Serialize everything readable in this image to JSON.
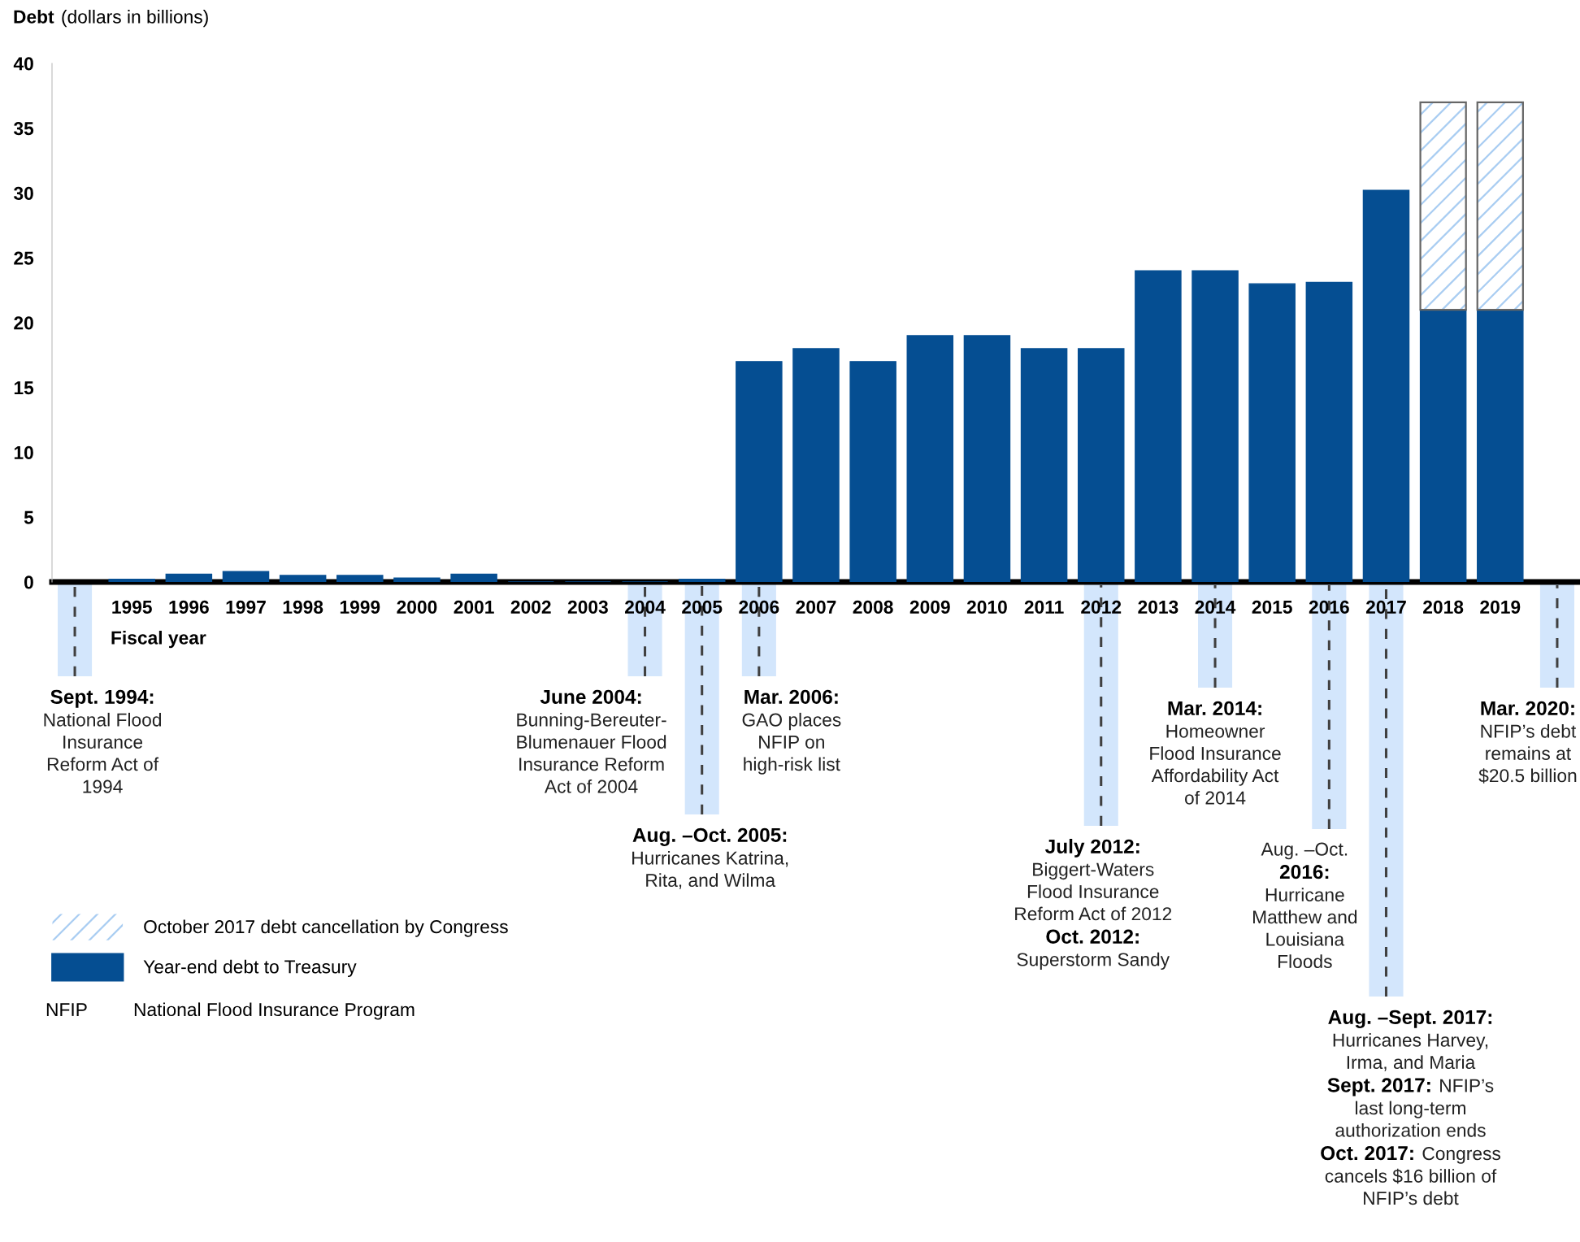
{
  "chart_data": {
    "type": "bar",
    "stacked": true,
    "ylabel": "Debt (dollars in billions)",
    "xlabel": "Fiscal year",
    "x": [
      1995,
      1996,
      1997,
      1998,
      1999,
      2000,
      2001,
      2002,
      2003,
      2004,
      2005,
      2006,
      2007,
      2008,
      2009,
      2010,
      2011,
      2012,
      2013,
      2014,
      2015,
      2016,
      2017,
      2018,
      2019
    ],
    "xlim": [
      1993.6,
      2020.4
    ],
    "xticks": [
      1995,
      1996,
      1997,
      1998,
      1999,
      2000,
      2001,
      2002,
      2003,
      2004,
      2005,
      2006,
      2007,
      2008,
      2009,
      2010,
      2011,
      2012,
      2013,
      2014,
      2015,
      2016,
      2017,
      2018,
      2019
    ],
    "ylim": [
      0,
      40
    ],
    "yticks": [
      0,
      5,
      10,
      15,
      20,
      25,
      30,
      35,
      40
    ],
    "series": [
      {
        "name": "Year-end debt to Treasury",
        "color": "#054e92",
        "values": [
          0.2,
          0.6,
          0.8,
          0.5,
          0.5,
          0.3,
          0.6,
          0,
          0,
          0,
          0.2,
          17,
          18,
          17,
          19,
          19,
          18,
          18,
          24,
          24,
          23,
          23.1,
          30.2,
          21,
          21
        ]
      },
      {
        "name": "October 2017 debt cancellation by Congress",
        "color": "#a9cdf2",
        "values": [
          null,
          null,
          null,
          null,
          null,
          null,
          null,
          null,
          null,
          null,
          null,
          null,
          null,
          null,
          null,
          null,
          null,
          null,
          null,
          null,
          null,
          null,
          null,
          16,
          16
        ]
      }
    ],
    "legend": "bottom left",
    "grid": false,
    "annotations": [
      "Sept. 1994:\nNational Flood\nInsurance\nReform Act of\n1994",
      "June 2004:\nBunning-Bereuter-\nBlumenauer Flood\nInsurance Reform\nAct of 2004",
      "Aug. –Oct. 2005:\nHurricanes Katrina,\nRita, and Wilma",
      "Mar. 2006:\nGAO places\nNFIP on\nhigh-risk list",
      "July 2012:\nBiggert-Waters\nFlood Insurance\nReform Act of 2012\nOct. 2012:\nSuperstorm Sandy",
      "Mar. 2014:\nHomeowner\nFlood Insurance\nAffordability Act\nof 2014",
      "Aug. –Oct.\n2016:\nHurricane\nMatthew and\nLouisiana\nFloods",
      "Aug. –Sept. 2017:\nHurricanes Harvey,\nIrma, and Maria\nSept. 2017: NFIP’s\nlast long-term\nauthorization ends\nOct. 2017: Congress\ncancels $16 billion of\nNFIP’s debt",
      "Mar. 2020:\nNFIP’s debt\nremains at\n$20.5 billion",
      "NFIP",
      "National Flood Insurance Program"
    ]
  }
}
